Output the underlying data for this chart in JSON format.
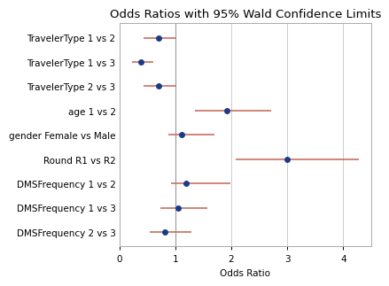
{
  "title": "Odds Ratios with 95% Wald Confidence Limits",
  "xlabel": "Odds Ratio",
  "categories": [
    "TravelerType 1 vs 2",
    "TravelerType 1 vs 3",
    "TravelerType 2 vs 3",
    "age 1 vs 2",
    "gender Female vs Male",
    "Round R1 vs R2",
    "DMSFrequency 1 vs 2",
    "DMSFrequency 1 vs 3",
    "DMSFrequency 2 vs 3"
  ],
  "odds_ratios": [
    0.7,
    0.38,
    0.7,
    1.92,
    1.12,
    3.0,
    1.2,
    1.05,
    0.82
  ],
  "ci_lower": [
    0.44,
    0.22,
    0.44,
    1.35,
    0.88,
    2.08,
    0.92,
    0.73,
    0.55
  ],
  "ci_upper": [
    1.02,
    0.6,
    1.02,
    2.72,
    1.7,
    4.28,
    1.98,
    1.57,
    1.28
  ],
  "xlim": [
    0,
    4.5
  ],
  "xticks": [
    0,
    1,
    2,
    3,
    4
  ],
  "point_color": "#1a3a8a",
  "line_color": "#c87060",
  "vline_color": "#999999",
  "grid_color": "#cccccc",
  "bg_color": "#FFFFFF",
  "panel_bg": "#FFFFFF",
  "border_color": "#aaaaaa",
  "title_fontsize": 9.5,
  "label_fontsize": 7.5,
  "tick_fontsize": 7.5,
  "markersize": 5,
  "capsize": 3,
  "elinewidth": 1.2,
  "capthick": 1.2
}
